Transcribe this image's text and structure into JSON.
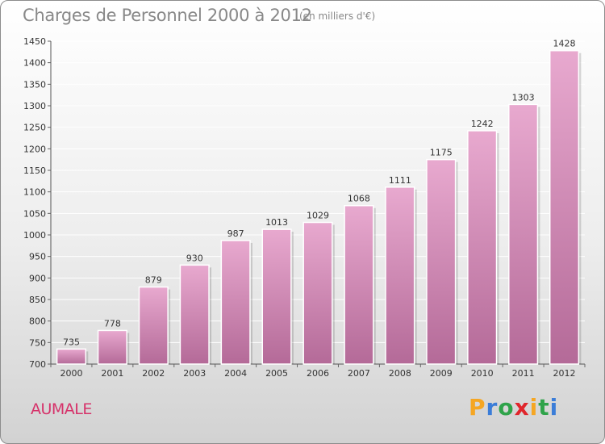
{
  "title": "Charges de Personnel 2000 à 2012",
  "subtitle": "(en milliers d'€)",
  "city": "AUMALE",
  "logo": {
    "letters": [
      "P",
      "r",
      "o",
      "x",
      "i",
      "t",
      "i"
    ],
    "colors": [
      "#f5a623",
      "#3b7dd8",
      "#2fa34a",
      "#e0262c",
      "#f5a623",
      "#2fa34a",
      "#3b7dd8"
    ]
  },
  "chart_data": {
    "type": "bar",
    "title": "Charges de Personnel 2000 à 2012",
    "subtitle": "(en milliers d'€)",
    "categories": [
      "2000",
      "2001",
      "2002",
      "2003",
      "2004",
      "2005",
      "2006",
      "2007",
      "2008",
      "2009",
      "2010",
      "2011",
      "2012"
    ],
    "values": [
      735,
      778,
      879,
      930,
      987,
      1013,
      1029,
      1068,
      1111,
      1175,
      1242,
      1303,
      1428
    ],
    "ylim": [
      700,
      1450
    ],
    "yticks": [
      700,
      750,
      800,
      850,
      900,
      950,
      1000,
      1050,
      1100,
      1150,
      1200,
      1250,
      1300,
      1350,
      1400,
      1450
    ],
    "grid": true,
    "bar_color": "#cc7aa8"
  }
}
